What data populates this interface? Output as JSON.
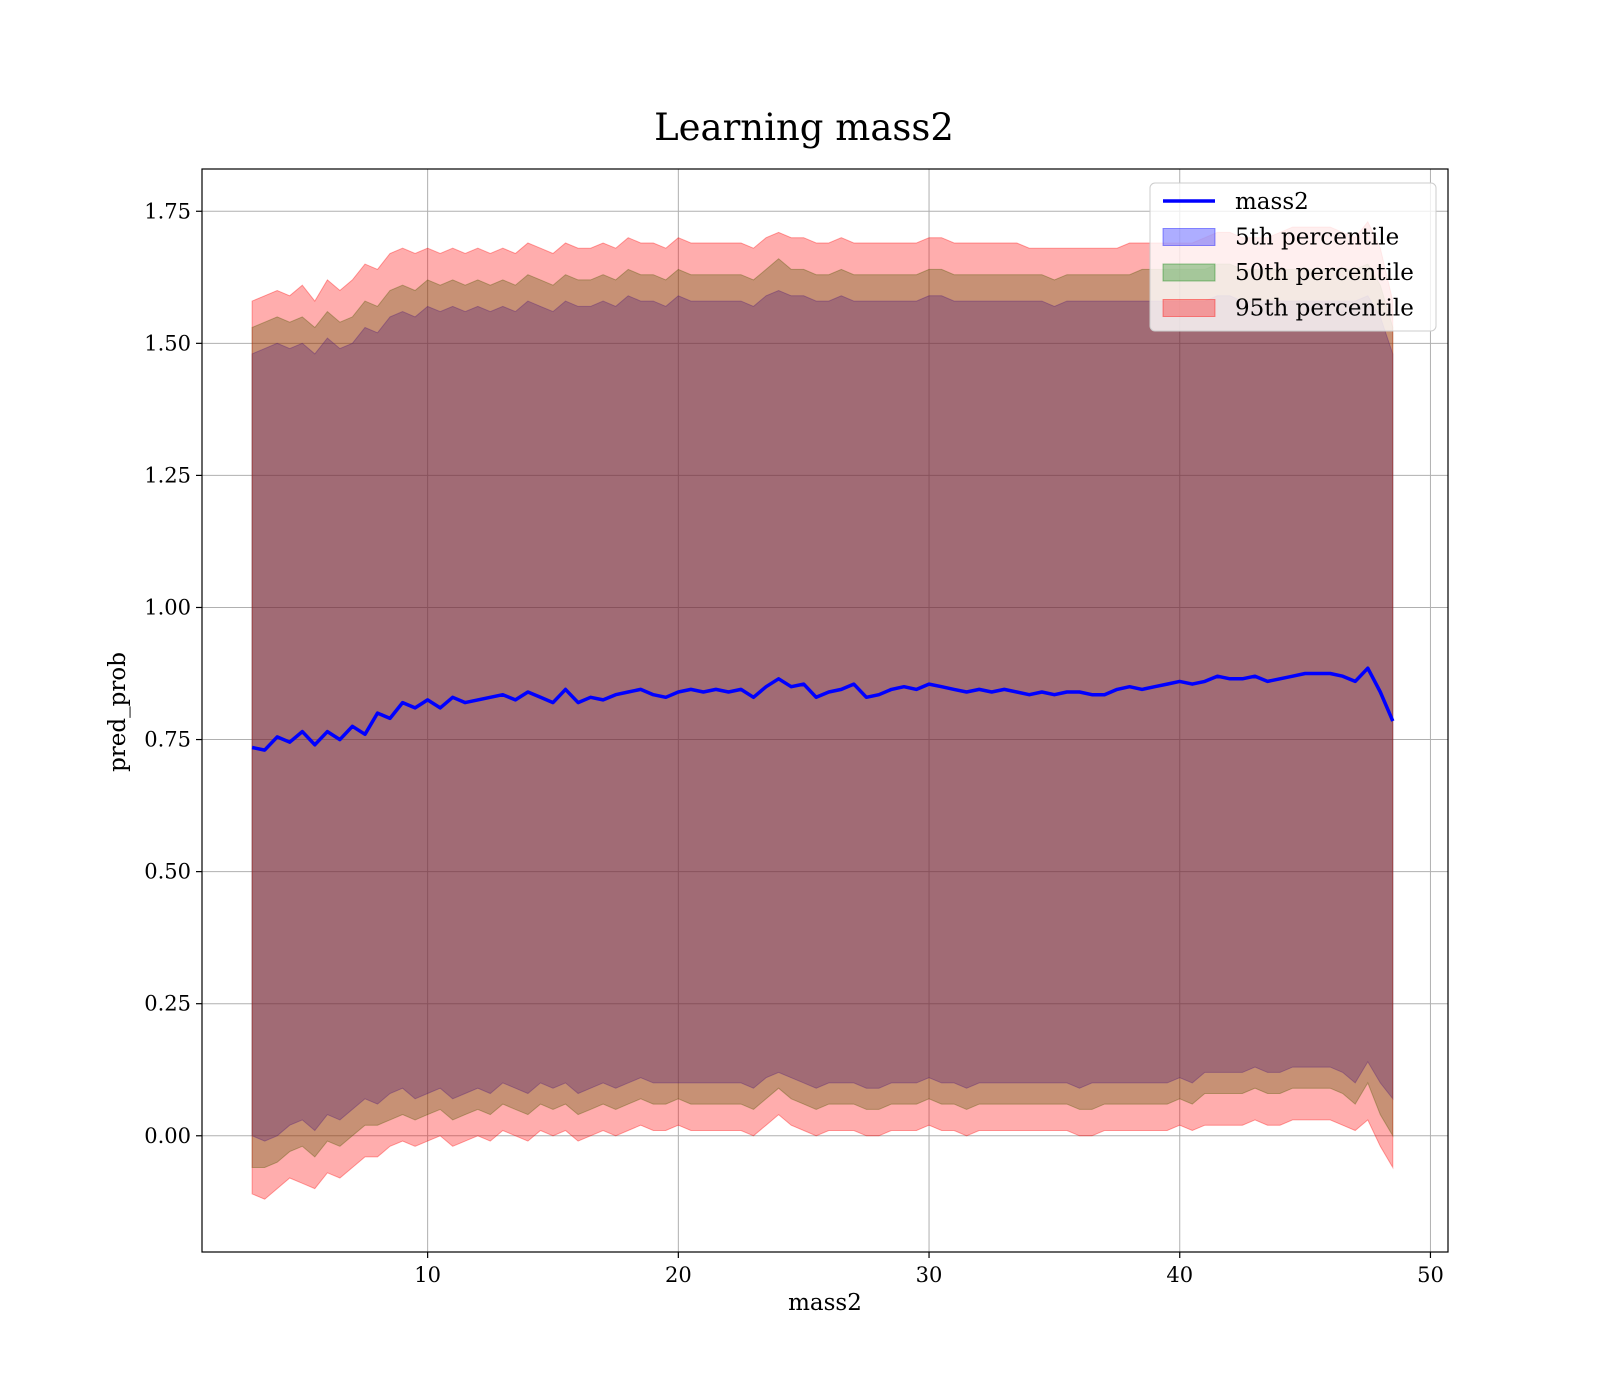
{
  "chart_data": {
    "type": "line",
    "title": "Learning mass2",
    "xlabel": "mass2",
    "ylabel": "pred_prob",
    "xlim": [
      1,
      50.7
    ],
    "ylim": [
      -0.22,
      1.83
    ],
    "xticks": [
      10,
      20,
      30,
      40,
      50
    ],
    "xtick_labels": [
      "10",
      "20",
      "30",
      "40",
      "50"
    ],
    "yticks": [
      0.0,
      0.25,
      0.5,
      0.75,
      1.0,
      1.25,
      1.5,
      1.75
    ],
    "ytick_labels": [
      "0.00",
      "0.25",
      "0.50",
      "0.75",
      "1.00",
      "1.25",
      "1.50",
      "1.75"
    ],
    "grid": true,
    "legend_position": "top-right",
    "x": [
      3.0,
      3.5,
      4.0,
      4.5,
      5.0,
      5.5,
      6.0,
      6.5,
      7.0,
      7.5,
      8.0,
      8.5,
      9.0,
      9.5,
      10.0,
      10.5,
      11.0,
      11.5,
      12.0,
      12.5,
      13.0,
      13.5,
      14.0,
      14.5,
      15.0,
      15.5,
      16.0,
      16.5,
      17.0,
      17.5,
      18.0,
      18.5,
      19.0,
      19.5,
      20.0,
      20.5,
      21.0,
      21.5,
      22.0,
      22.5,
      23.0,
      23.5,
      24.0,
      24.5,
      25.0,
      25.5,
      26.0,
      26.5,
      27.0,
      27.5,
      28.0,
      28.5,
      29.0,
      29.5,
      30.0,
      30.5,
      31.0,
      31.5,
      32.0,
      32.5,
      33.0,
      33.5,
      34.0,
      34.5,
      35.0,
      35.5,
      36.0,
      36.5,
      37.0,
      37.5,
      38.0,
      38.5,
      39.0,
      39.5,
      40.0,
      40.5,
      41.0,
      41.5,
      42.0,
      42.5,
      43.0,
      43.5,
      44.0,
      44.5,
      45.0,
      45.5,
      46.0,
      46.5,
      47.0,
      47.5,
      48.0,
      48.5
    ],
    "series": [
      {
        "name": "mass2",
        "kind": "line",
        "color": "#0000ff",
        "values": [
          0.735,
          0.73,
          0.755,
          0.745,
          0.765,
          0.74,
          0.765,
          0.75,
          0.775,
          0.76,
          0.8,
          0.79,
          0.82,
          0.81,
          0.825,
          0.81,
          0.83,
          0.82,
          0.825,
          0.83,
          0.835,
          0.825,
          0.84,
          0.83,
          0.82,
          0.845,
          0.82,
          0.83,
          0.825,
          0.835,
          0.84,
          0.845,
          0.835,
          0.83,
          0.84,
          0.845,
          0.84,
          0.845,
          0.84,
          0.845,
          0.83,
          0.85,
          0.865,
          0.85,
          0.855,
          0.83,
          0.84,
          0.845,
          0.855,
          0.83,
          0.835,
          0.845,
          0.85,
          0.845,
          0.855,
          0.85,
          0.845,
          0.84,
          0.845,
          0.84,
          0.845,
          0.84,
          0.835,
          0.84,
          0.835,
          0.84,
          0.84,
          0.835,
          0.835,
          0.845,
          0.85,
          0.845,
          0.85,
          0.855,
          0.86,
          0.855,
          0.86,
          0.87,
          0.865,
          0.865,
          0.87,
          0.86,
          0.865,
          0.87,
          0.875,
          0.875,
          0.875,
          0.87,
          0.86,
          0.885,
          0.84,
          0.785
        ]
      },
      {
        "name": "5th percentile",
        "kind": "band",
        "color": "#0000ff",
        "lower": [
          0.0,
          -0.01,
          0.0,
          0.02,
          0.03,
          0.01,
          0.04,
          0.03,
          0.05,
          0.07,
          0.06,
          0.08,
          0.09,
          0.07,
          0.08,
          0.09,
          0.07,
          0.08,
          0.09,
          0.08,
          0.1,
          0.09,
          0.08,
          0.1,
          0.09,
          0.1,
          0.08,
          0.09,
          0.1,
          0.09,
          0.1,
          0.11,
          0.1,
          0.1,
          0.1,
          0.1,
          0.1,
          0.1,
          0.1,
          0.1,
          0.09,
          0.11,
          0.12,
          0.11,
          0.1,
          0.09,
          0.1,
          0.1,
          0.1,
          0.09,
          0.09,
          0.1,
          0.1,
          0.1,
          0.11,
          0.1,
          0.1,
          0.09,
          0.1,
          0.1,
          0.1,
          0.1,
          0.1,
          0.1,
          0.1,
          0.1,
          0.09,
          0.1,
          0.1,
          0.1,
          0.1,
          0.1,
          0.1,
          0.1,
          0.11,
          0.1,
          0.12,
          0.12,
          0.12,
          0.12,
          0.13,
          0.12,
          0.12,
          0.13,
          0.13,
          0.13,
          0.13,
          0.12,
          0.1,
          0.14,
          0.1,
          0.07
        ],
        "upper": [
          1.48,
          1.49,
          1.5,
          1.49,
          1.5,
          1.48,
          1.51,
          1.49,
          1.5,
          1.53,
          1.52,
          1.55,
          1.56,
          1.55,
          1.57,
          1.56,
          1.57,
          1.56,
          1.57,
          1.56,
          1.57,
          1.56,
          1.58,
          1.57,
          1.56,
          1.58,
          1.57,
          1.57,
          1.58,
          1.57,
          1.59,
          1.58,
          1.58,
          1.57,
          1.59,
          1.58,
          1.58,
          1.58,
          1.58,
          1.58,
          1.57,
          1.59,
          1.6,
          1.59,
          1.59,
          1.58,
          1.58,
          1.59,
          1.58,
          1.58,
          1.58,
          1.58,
          1.58,
          1.58,
          1.59,
          1.59,
          1.58,
          1.58,
          1.58,
          1.58,
          1.58,
          1.58,
          1.58,
          1.58,
          1.57,
          1.58,
          1.58,
          1.58,
          1.58,
          1.58,
          1.58,
          1.58,
          1.58,
          1.58,
          1.58,
          1.58,
          1.58,
          1.59,
          1.59,
          1.58,
          1.58,
          1.58,
          1.58,
          1.58,
          1.58,
          1.58,
          1.58,
          1.58,
          1.58,
          1.59,
          1.55,
          1.48
        ]
      },
      {
        "name": "50th percentile",
        "kind": "band",
        "color": "#008000",
        "lower": [
          -0.06,
          -0.06,
          -0.05,
          -0.03,
          -0.02,
          -0.04,
          -0.01,
          -0.02,
          0.0,
          0.02,
          0.02,
          0.03,
          0.04,
          0.03,
          0.04,
          0.05,
          0.03,
          0.04,
          0.05,
          0.04,
          0.06,
          0.05,
          0.04,
          0.06,
          0.05,
          0.06,
          0.04,
          0.05,
          0.06,
          0.05,
          0.06,
          0.07,
          0.06,
          0.06,
          0.07,
          0.06,
          0.06,
          0.06,
          0.06,
          0.06,
          0.05,
          0.07,
          0.09,
          0.07,
          0.06,
          0.05,
          0.06,
          0.06,
          0.06,
          0.05,
          0.05,
          0.06,
          0.06,
          0.06,
          0.07,
          0.06,
          0.06,
          0.05,
          0.06,
          0.06,
          0.06,
          0.06,
          0.06,
          0.06,
          0.06,
          0.06,
          0.05,
          0.05,
          0.06,
          0.06,
          0.06,
          0.06,
          0.06,
          0.06,
          0.07,
          0.06,
          0.08,
          0.08,
          0.08,
          0.08,
          0.09,
          0.08,
          0.08,
          0.09,
          0.09,
          0.09,
          0.09,
          0.08,
          0.06,
          0.1,
          0.04,
          0.0
        ],
        "upper": [
          1.53,
          1.54,
          1.55,
          1.54,
          1.55,
          1.53,
          1.56,
          1.54,
          1.55,
          1.58,
          1.57,
          1.6,
          1.61,
          1.6,
          1.62,
          1.61,
          1.62,
          1.61,
          1.62,
          1.61,
          1.62,
          1.61,
          1.63,
          1.62,
          1.61,
          1.63,
          1.62,
          1.62,
          1.63,
          1.62,
          1.64,
          1.63,
          1.63,
          1.62,
          1.64,
          1.63,
          1.63,
          1.63,
          1.63,
          1.63,
          1.62,
          1.64,
          1.66,
          1.64,
          1.64,
          1.63,
          1.63,
          1.64,
          1.63,
          1.63,
          1.63,
          1.63,
          1.63,
          1.63,
          1.64,
          1.64,
          1.63,
          1.63,
          1.63,
          1.63,
          1.63,
          1.63,
          1.63,
          1.63,
          1.62,
          1.63,
          1.63,
          1.63,
          1.63,
          1.63,
          1.63,
          1.64,
          1.64,
          1.64,
          1.64,
          1.64,
          1.64,
          1.65,
          1.65,
          1.64,
          1.64,
          1.64,
          1.64,
          1.64,
          1.64,
          1.64,
          1.64,
          1.64,
          1.64,
          1.65,
          1.61,
          1.53
        ]
      },
      {
        "name": "95th percentile",
        "kind": "band",
        "color": "#ff0000",
        "lower": [
          -0.11,
          -0.12,
          -0.1,
          -0.08,
          -0.09,
          -0.1,
          -0.07,
          -0.08,
          -0.06,
          -0.04,
          -0.04,
          -0.02,
          -0.01,
          -0.02,
          -0.01,
          0.0,
          -0.02,
          -0.01,
          0.0,
          -0.01,
          0.01,
          0.0,
          -0.01,
          0.01,
          0.0,
          0.01,
          -0.01,
          0.0,
          0.01,
          0.0,
          0.01,
          0.02,
          0.01,
          0.01,
          0.02,
          0.01,
          0.01,
          0.01,
          0.01,
          0.01,
          0.0,
          0.02,
          0.04,
          0.02,
          0.01,
          0.0,
          0.01,
          0.01,
          0.01,
          0.0,
          0.0,
          0.01,
          0.01,
          0.01,
          0.02,
          0.01,
          0.01,
          0.0,
          0.01,
          0.01,
          0.01,
          0.01,
          0.01,
          0.01,
          0.01,
          0.01,
          0.0,
          0.0,
          0.01,
          0.01,
          0.01,
          0.01,
          0.01,
          0.01,
          0.02,
          0.01,
          0.02,
          0.02,
          0.02,
          0.02,
          0.03,
          0.02,
          0.02,
          0.03,
          0.03,
          0.03,
          0.03,
          0.02,
          0.01,
          0.03,
          -0.02,
          -0.06
        ],
        "upper": [
          1.58,
          1.59,
          1.6,
          1.59,
          1.61,
          1.58,
          1.62,
          1.6,
          1.62,
          1.65,
          1.64,
          1.67,
          1.68,
          1.67,
          1.68,
          1.67,
          1.68,
          1.67,
          1.68,
          1.67,
          1.68,
          1.67,
          1.69,
          1.68,
          1.67,
          1.69,
          1.68,
          1.68,
          1.69,
          1.68,
          1.7,
          1.69,
          1.69,
          1.68,
          1.7,
          1.69,
          1.69,
          1.69,
          1.69,
          1.69,
          1.68,
          1.7,
          1.71,
          1.7,
          1.7,
          1.69,
          1.69,
          1.7,
          1.69,
          1.69,
          1.69,
          1.69,
          1.69,
          1.69,
          1.7,
          1.7,
          1.69,
          1.69,
          1.69,
          1.69,
          1.69,
          1.69,
          1.68,
          1.68,
          1.68,
          1.68,
          1.68,
          1.68,
          1.68,
          1.68,
          1.69,
          1.69,
          1.69,
          1.69,
          1.69,
          1.69,
          1.7,
          1.71,
          1.71,
          1.7,
          1.7,
          1.7,
          1.71,
          1.72,
          1.72,
          1.72,
          1.72,
          1.71,
          1.7,
          1.73,
          1.68,
          1.58
        ]
      }
    ]
  }
}
